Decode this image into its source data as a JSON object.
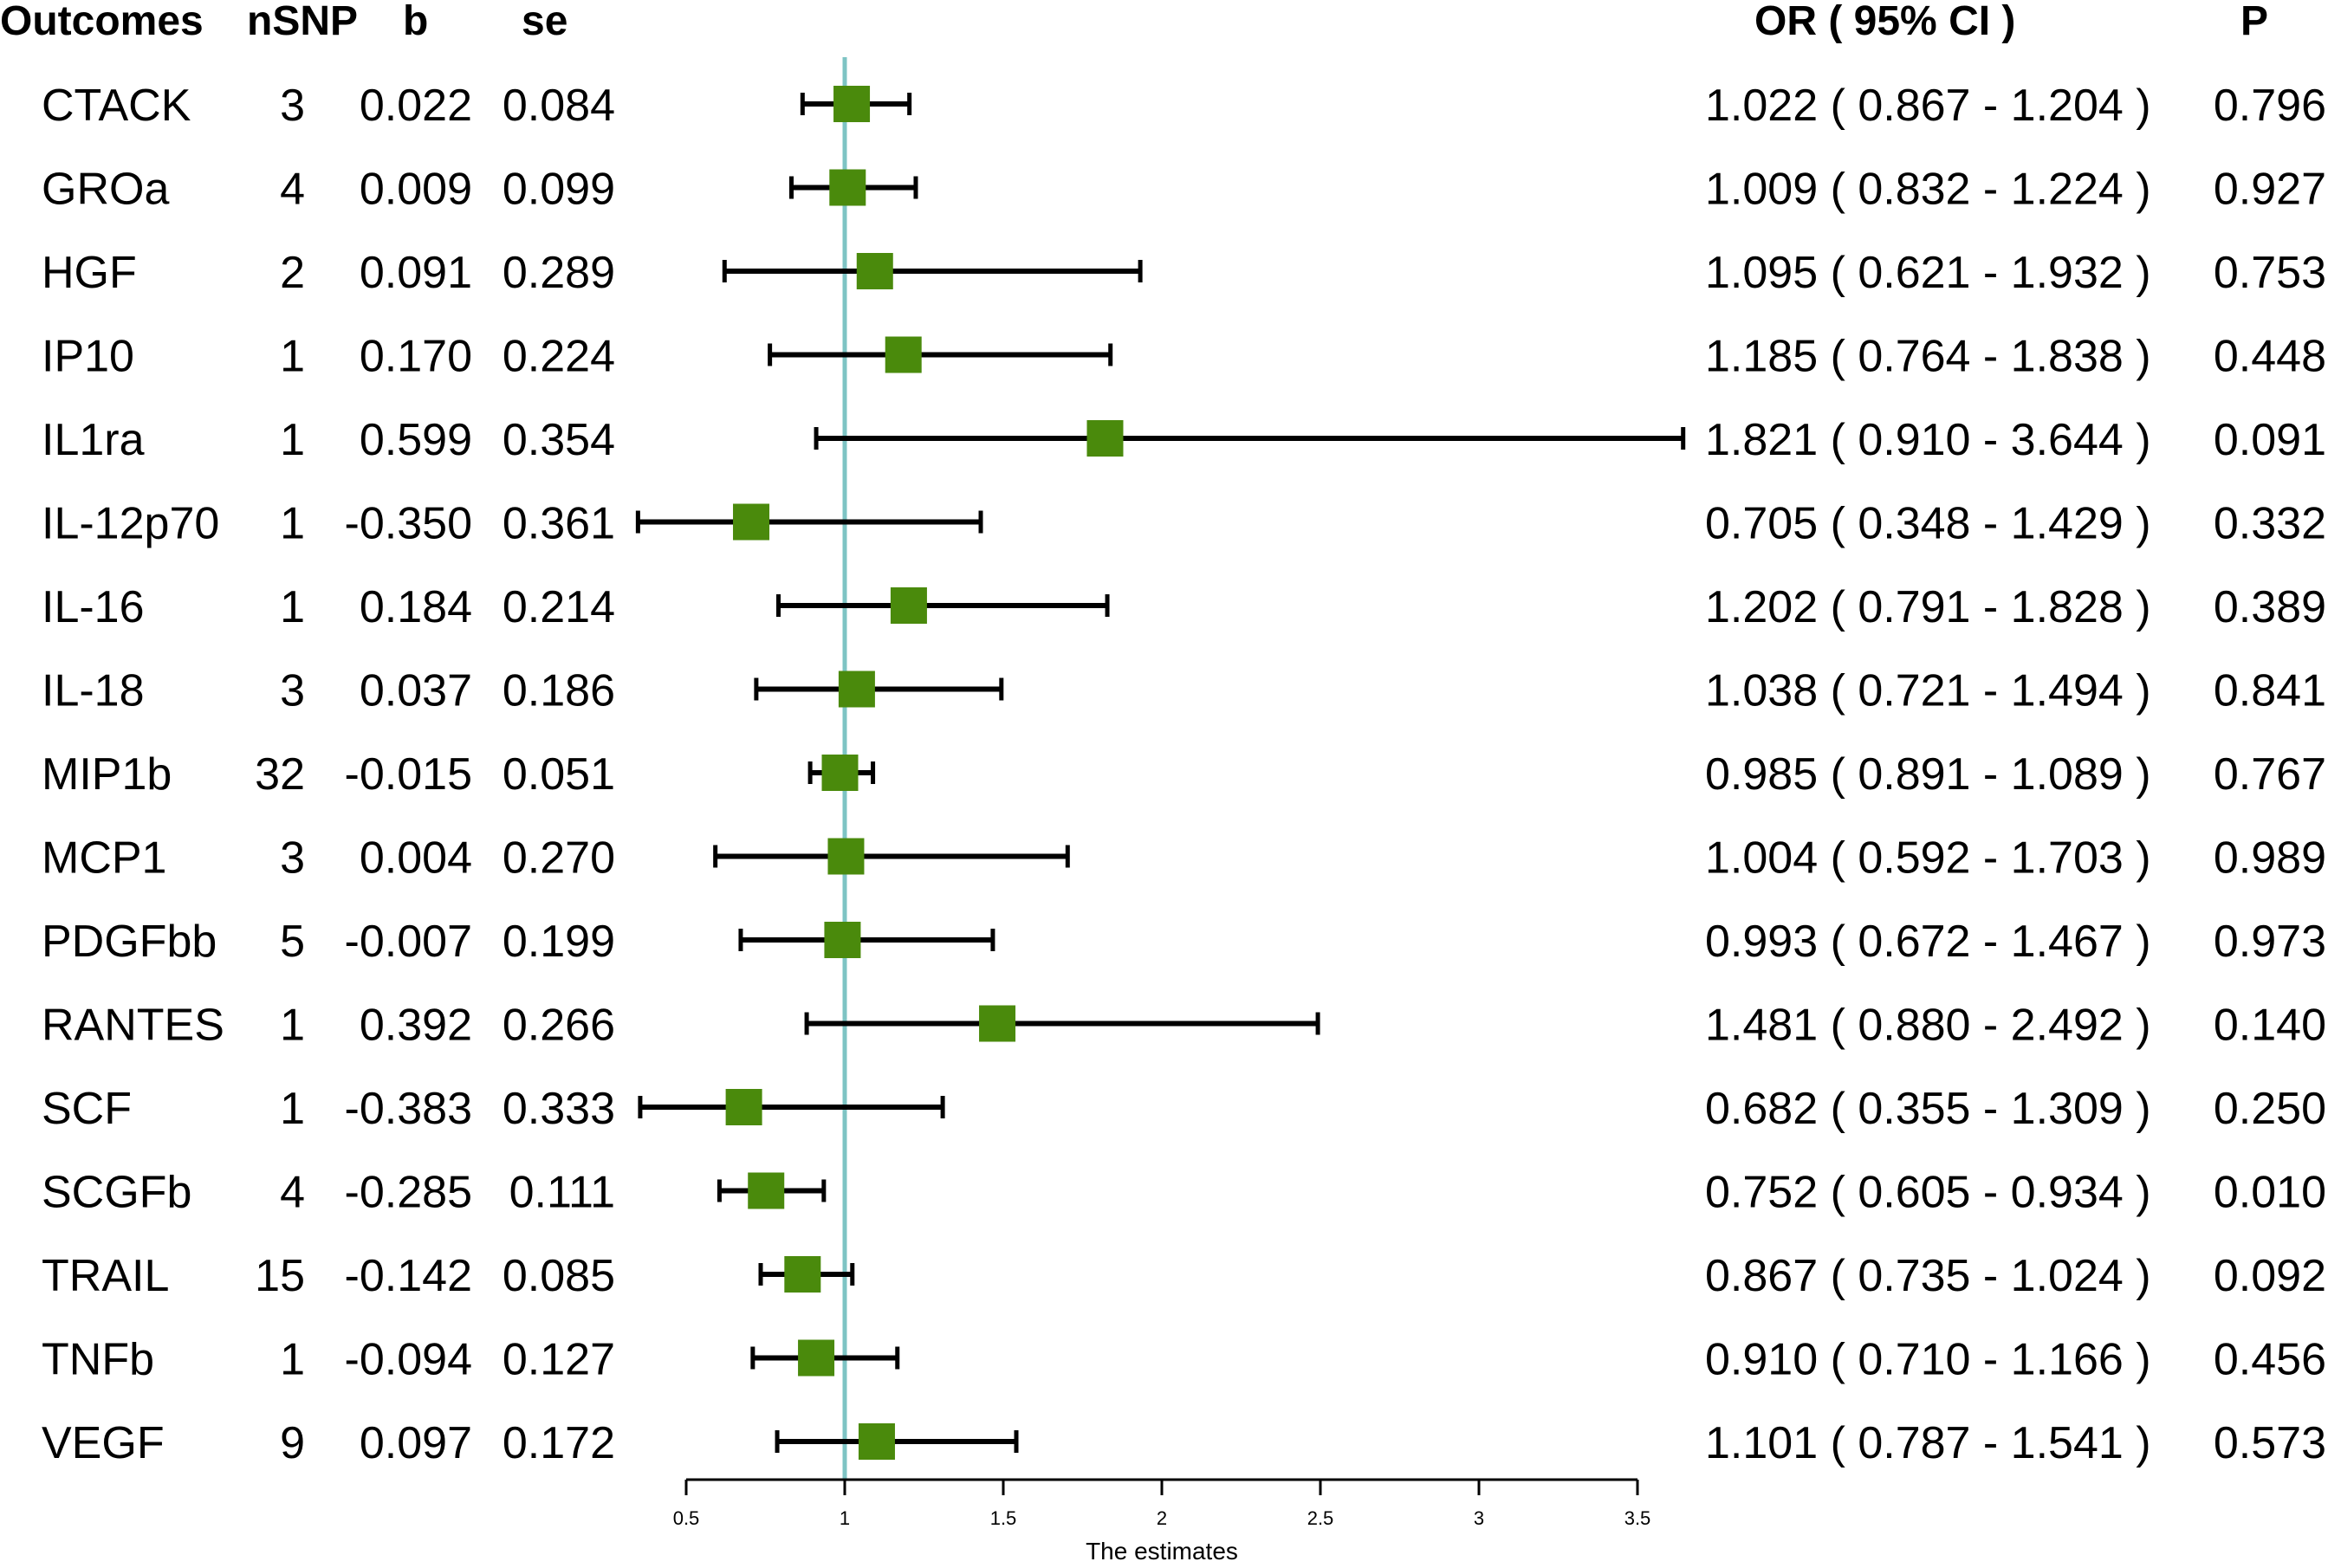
{
  "chart_data": {
    "type": "forest",
    "columns": {
      "outcome": "Outcomes",
      "nsnp": "nSNP",
      "b": "b",
      "se": "se",
      "or_ci": "OR ( 95% CI )",
      "p": "P"
    },
    "xlabel": "The estimates",
    "reference_line": 1,
    "xlim": [
      0.5,
      3.5
    ],
    "xticks": [
      "0.5",
      "1",
      "1.5",
      "2",
      "2.5",
      "3",
      "3.5"
    ],
    "colors": {
      "marker": "#4a8a0c",
      "reference_line": "#7ec4c4",
      "whisker": "#000000"
    },
    "rows": [
      {
        "outcome": "CTACK",
        "nsnp": "3",
        "b": "0.022",
        "se": "0.084",
        "or": 1.022,
        "lo": 0.867,
        "hi": 1.204,
        "or_ci": "1.022 ( 0.867 - 1.204 )",
        "p": "0.796"
      },
      {
        "outcome": "GROa",
        "nsnp": "4",
        "b": "0.009",
        "se": "0.099",
        "or": 1.009,
        "lo": 0.832,
        "hi": 1.224,
        "or_ci": "1.009 ( 0.832 - 1.224 )",
        "p": "0.927"
      },
      {
        "outcome": "HGF",
        "nsnp": "2",
        "b": "0.091",
        "se": "0.289",
        "or": 1.095,
        "lo": 0.621,
        "hi": 1.932,
        "or_ci": "1.095 ( 0.621 - 1.932 )",
        "p": "0.753"
      },
      {
        "outcome": "IP10",
        "nsnp": "1",
        "b": "0.170",
        "se": "0.224",
        "or": 1.185,
        "lo": 0.764,
        "hi": 1.838,
        "or_ci": "1.185 ( 0.764 - 1.838 )",
        "p": "0.448"
      },
      {
        "outcome": "IL1ra",
        "nsnp": "1",
        "b": "0.599",
        "se": "0.354",
        "or": 1.821,
        "lo": 0.91,
        "hi": 3.644,
        "or_ci": "1.821 ( 0.910 - 3.644 )",
        "p": "0.091"
      },
      {
        "outcome": "IL-12p70",
        "nsnp": "1",
        "b": "-0.350",
        "se": "0.361",
        "or": 0.705,
        "lo": 0.348,
        "hi": 1.429,
        "or_ci": "0.705 ( 0.348 - 1.429 )",
        "p": "0.332"
      },
      {
        "outcome": "IL-16",
        "nsnp": "1",
        "b": "0.184",
        "se": "0.214",
        "or": 1.202,
        "lo": 0.791,
        "hi": 1.828,
        "or_ci": "1.202 ( 0.791 - 1.828 )",
        "p": "0.389"
      },
      {
        "outcome": "IL-18",
        "nsnp": "3",
        "b": "0.037",
        "se": "0.186",
        "or": 1.038,
        "lo": 0.721,
        "hi": 1.494,
        "or_ci": "1.038 ( 0.721 - 1.494 )",
        "p": "0.841"
      },
      {
        "outcome": "MIP1b",
        "nsnp": "32",
        "b": "-0.015",
        "se": "0.051",
        "or": 0.985,
        "lo": 0.891,
        "hi": 1.089,
        "or_ci": "0.985 ( 0.891 - 1.089 )",
        "p": "0.767"
      },
      {
        "outcome": "MCP1",
        "nsnp": "3",
        "b": "0.004",
        "se": "0.270",
        "or": 1.004,
        "lo": 0.592,
        "hi": 1.703,
        "or_ci": "1.004 ( 0.592 - 1.703 )",
        "p": "0.989"
      },
      {
        "outcome": "PDGFbb",
        "nsnp": "5",
        "b": "-0.007",
        "se": "0.199",
        "or": 0.993,
        "lo": 0.672,
        "hi": 1.467,
        "or_ci": "0.993 ( 0.672 - 1.467 )",
        "p": "0.973"
      },
      {
        "outcome": "RANTES",
        "nsnp": "1",
        "b": "0.392",
        "se": "0.266",
        "or": 1.481,
        "lo": 0.88,
        "hi": 2.492,
        "or_ci": "1.481 ( 0.880 - 2.492 )",
        "p": "0.140"
      },
      {
        "outcome": "SCF",
        "nsnp": "1",
        "b": "-0.383",
        "se": "0.333",
        "or": 0.682,
        "lo": 0.355,
        "hi": 1.309,
        "or_ci": "0.682 ( 0.355 - 1.309 )",
        "p": "0.250"
      },
      {
        "outcome": "SCGFb",
        "nsnp": "4",
        "b": "-0.285",
        "se": "0.111",
        "or": 0.752,
        "lo": 0.605,
        "hi": 0.934,
        "or_ci": "0.752 ( 0.605 - 0.934 )",
        "p": "0.010"
      },
      {
        "outcome": "TRAIL",
        "nsnp": "15",
        "b": "-0.142",
        "se": "0.085",
        "or": 0.867,
        "lo": 0.735,
        "hi": 1.024,
        "or_ci": "0.867 ( 0.735 - 1.024 )",
        "p": "0.092"
      },
      {
        "outcome": "TNFb",
        "nsnp": "1",
        "b": "-0.094",
        "se": "0.127",
        "or": 0.91,
        "lo": 0.71,
        "hi": 1.166,
        "or_ci": "0.910 ( 0.710 - 1.166 )",
        "p": "0.456"
      },
      {
        "outcome": "VEGF",
        "nsnp": "9",
        "b": "0.097",
        "se": "0.172",
        "or": 1.101,
        "lo": 0.787,
        "hi": 1.541,
        "or_ci": "1.101 ( 0.787 - 1.541 )",
        "p": "0.573"
      }
    ]
  }
}
